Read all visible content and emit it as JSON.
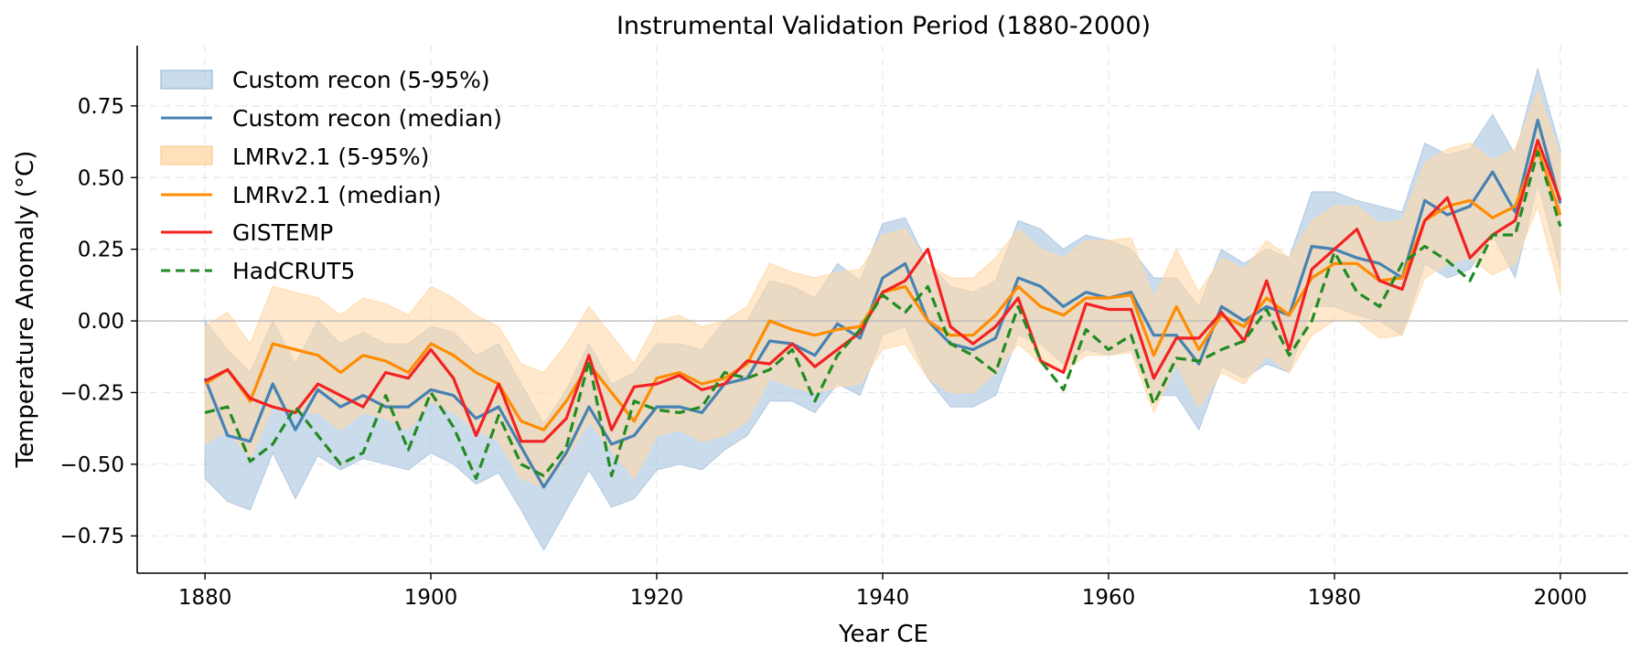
{
  "chart_data": {
    "type": "line",
    "title": "Instrumental Validation Period (1880-2000)",
    "xlabel": "Year CE",
    "ylabel": "Temperature Anomaly (°C)",
    "xlim": [
      1874,
      2006
    ],
    "ylim": [
      -0.88,
      0.96
    ],
    "xticks": [
      1880,
      1900,
      1920,
      1940,
      1960,
      1980,
      2000
    ],
    "xtick_labels": [
      "1880",
      "1900",
      "1920",
      "1940",
      "1960",
      "1980",
      "2000"
    ],
    "yticks": [
      -0.75,
      -0.5,
      -0.25,
      0.0,
      0.25,
      0.5,
      0.75
    ],
    "ytick_labels": [
      "−0.75",
      "−0.50",
      "−0.25",
      "0.00",
      "0.25",
      "0.50",
      "0.75"
    ],
    "grid": true,
    "zero_line": true,
    "legend_position": "top-left",
    "colors": {
      "custom": "#4682b4",
      "custom_band": "#aec7e0",
      "lmr": "#ff8c00",
      "lmr_band": "#ffd8a8",
      "gistemp": "#f22222",
      "hadcrut": "#228b22"
    },
    "x": [
      1880,
      1882,
      1884,
      1886,
      1888,
      1890,
      1892,
      1894,
      1896,
      1898,
      1900,
      1902,
      1904,
      1906,
      1908,
      1910,
      1912,
      1914,
      1916,
      1918,
      1920,
      1922,
      1924,
      1926,
      1928,
      1930,
      1932,
      1934,
      1936,
      1938,
      1940,
      1942,
      1944,
      1946,
      1948,
      1950,
      1952,
      1954,
      1956,
      1958,
      1960,
      1962,
      1964,
      1966,
      1968,
      1970,
      1972,
      1974,
      1976,
      1978,
      1980,
      1982,
      1984,
      1986,
      1988,
      1990,
      1992,
      1994,
      1996,
      1998,
      2000
    ],
    "series": [
      {
        "name": "Custom recon (median)",
        "legend": "Custom recon (median)",
        "style": "solid",
        "color_key": "custom",
        "values": [
          -0.2,
          -0.4,
          -0.42,
          -0.22,
          -0.38,
          -0.24,
          -0.3,
          -0.26,
          -0.3,
          -0.3,
          -0.24,
          -0.26,
          -0.34,
          -0.3,
          -0.44,
          -0.58,
          -0.46,
          -0.3,
          -0.43,
          -0.4,
          -0.3,
          -0.3,
          -0.32,
          -0.22,
          -0.2,
          -0.07,
          -0.08,
          -0.12,
          -0.01,
          -0.06,
          0.15,
          0.2,
          0.0,
          -0.08,
          -0.1,
          -0.06,
          0.15,
          0.12,
          0.05,
          0.1,
          0.08,
          0.1,
          -0.05,
          -0.05,
          -0.15,
          0.05,
          0.0,
          0.05,
          0.02,
          0.26,
          0.25,
          0.22,
          0.2,
          0.15,
          0.42,
          0.37,
          0.4,
          0.52,
          0.38,
          0.7,
          0.41
        ]
      },
      {
        "name": "LMRv2.1 (median)",
        "legend": "LMRv2.1 (median)",
        "style": "solid",
        "color_key": "lmr",
        "values": [
          -0.22,
          -0.17,
          -0.28,
          -0.08,
          -0.1,
          -0.12,
          -0.18,
          -0.12,
          -0.14,
          -0.18,
          -0.08,
          -0.12,
          -0.18,
          -0.22,
          -0.35,
          -0.38,
          -0.28,
          -0.15,
          -0.25,
          -0.35,
          -0.2,
          -0.18,
          -0.22,
          -0.2,
          -0.15,
          0.0,
          -0.03,
          -0.05,
          -0.03,
          -0.02,
          0.1,
          0.12,
          0.0,
          -0.05,
          -0.05,
          0.02,
          0.12,
          0.05,
          0.02,
          0.08,
          0.08,
          0.09,
          -0.12,
          0.05,
          -0.1,
          0.02,
          -0.02,
          0.08,
          0.02,
          0.15,
          0.2,
          0.2,
          0.14,
          0.15,
          0.35,
          0.4,
          0.42,
          0.36,
          0.4,
          0.6,
          0.37
        ]
      },
      {
        "name": "GISTEMP",
        "legend": "GISTEMP",
        "style": "solid",
        "color_key": "gistemp",
        "values": [
          -0.21,
          -0.17,
          -0.27,
          -0.3,
          -0.32,
          -0.22,
          -0.26,
          -0.3,
          -0.18,
          -0.2,
          -0.1,
          -0.2,
          -0.4,
          -0.22,
          -0.42,
          -0.42,
          -0.34,
          -0.12,
          -0.38,
          -0.23,
          -0.22,
          -0.19,
          -0.24,
          -0.22,
          -0.14,
          -0.15,
          -0.08,
          -0.16,
          -0.1,
          -0.04,
          0.1,
          0.14,
          0.25,
          -0.02,
          -0.08,
          -0.02,
          0.08,
          -0.14,
          -0.18,
          0.06,
          0.04,
          0.04,
          -0.2,
          -0.06,
          -0.06,
          0.03,
          -0.07,
          0.14,
          -0.1,
          0.18,
          0.25,
          0.32,
          0.14,
          0.11,
          0.35,
          0.43,
          0.22,
          0.3,
          0.35,
          0.63,
          0.42
        ]
      },
      {
        "name": "HadCRUT5",
        "legend": "HadCRUT5",
        "style": "dashed",
        "color_key": "hadcrut",
        "values": [
          -0.32,
          -0.3,
          -0.49,
          -0.43,
          -0.3,
          -0.4,
          -0.5,
          -0.46,
          -0.26,
          -0.45,
          -0.25,
          -0.37,
          -0.55,
          -0.33,
          -0.5,
          -0.54,
          -0.44,
          -0.14,
          -0.54,
          -0.28,
          -0.31,
          -0.32,
          -0.3,
          -0.18,
          -0.2,
          -0.17,
          -0.1,
          -0.28,
          -0.12,
          -0.03,
          0.09,
          0.03,
          0.12,
          -0.08,
          -0.12,
          -0.18,
          0.05,
          -0.14,
          -0.24,
          -0.03,
          -0.1,
          -0.05,
          -0.29,
          -0.13,
          -0.14,
          -0.1,
          -0.07,
          0.04,
          -0.12,
          0.0,
          0.24,
          0.1,
          0.05,
          0.2,
          0.26,
          0.21,
          0.14,
          0.3,
          0.3,
          0.59,
          0.33
        ]
      }
    ],
    "bands": [
      {
        "name": "Custom recon (5-95%)",
        "legend": "Custom recon (5-95%)",
        "color_key": "custom_band",
        "opacity": 0.65,
        "lower": [
          -0.55,
          -0.63,
          -0.66,
          -0.46,
          -0.62,
          -0.47,
          -0.52,
          -0.48,
          -0.5,
          -0.52,
          -0.46,
          -0.5,
          -0.57,
          -0.53,
          -0.66,
          -0.8,
          -0.66,
          -0.52,
          -0.65,
          -0.62,
          -0.52,
          -0.5,
          -0.52,
          -0.45,
          -0.4,
          -0.28,
          -0.28,
          -0.32,
          -0.22,
          -0.26,
          -0.05,
          -0.02,
          -0.2,
          -0.3,
          -0.3,
          -0.26,
          -0.05,
          -0.08,
          -0.15,
          -0.1,
          -0.12,
          -0.1,
          -0.26,
          -0.26,
          -0.38,
          -0.16,
          -0.2,
          -0.15,
          -0.18,
          0.05,
          0.05,
          0.02,
          0.0,
          -0.05,
          0.2,
          0.15,
          0.18,
          0.3,
          0.15,
          0.48,
          0.18
        ],
        "upper": [
          0.0,
          -0.1,
          -0.18,
          0.0,
          -0.15,
          0.0,
          -0.08,
          -0.04,
          -0.08,
          -0.08,
          -0.02,
          -0.04,
          -0.12,
          -0.08,
          -0.22,
          -0.36,
          -0.24,
          -0.08,
          -0.22,
          -0.18,
          -0.08,
          -0.08,
          -0.1,
          0.0,
          0.0,
          0.14,
          0.12,
          0.08,
          0.2,
          0.14,
          0.34,
          0.36,
          0.2,
          0.12,
          0.1,
          0.14,
          0.35,
          0.32,
          0.25,
          0.3,
          0.28,
          0.25,
          0.15,
          0.15,
          0.05,
          0.25,
          0.2,
          0.25,
          0.22,
          0.45,
          0.45,
          0.42,
          0.4,
          0.38,
          0.62,
          0.58,
          0.6,
          0.72,
          0.58,
          0.88,
          0.6
        ]
      },
      {
        "name": "LMRv2.1 (5-95%)",
        "legend": "LMRv2.1 (5-95%)",
        "color_key": "lmr_band",
        "opacity": 0.6,
        "lower": [
          -0.43,
          -0.38,
          -0.48,
          -0.3,
          -0.32,
          -0.32,
          -0.38,
          -0.32,
          -0.34,
          -0.38,
          -0.28,
          -0.32,
          -0.38,
          -0.42,
          -0.55,
          -0.58,
          -0.48,
          -0.35,
          -0.45,
          -0.55,
          -0.4,
          -0.38,
          -0.42,
          -0.4,
          -0.35,
          -0.2,
          -0.23,
          -0.25,
          -0.23,
          -0.22,
          -0.1,
          -0.08,
          -0.2,
          -0.25,
          -0.25,
          -0.18,
          -0.08,
          -0.15,
          -0.18,
          -0.12,
          -0.12,
          -0.11,
          -0.32,
          -0.15,
          -0.3,
          -0.18,
          -0.22,
          -0.12,
          -0.18,
          -0.05,
          0.0,
          0.0,
          -0.06,
          -0.05,
          0.15,
          0.2,
          0.22,
          0.16,
          0.2,
          0.4,
          0.1
        ],
        "upper": [
          -0.02,
          0.03,
          -0.08,
          0.12,
          0.1,
          0.08,
          0.02,
          0.08,
          0.06,
          0.02,
          0.12,
          0.08,
          0.02,
          -0.02,
          -0.15,
          -0.18,
          -0.08,
          0.05,
          -0.05,
          -0.15,
          0.0,
          0.02,
          -0.02,
          0.0,
          0.05,
          0.2,
          0.17,
          0.15,
          0.17,
          0.18,
          0.3,
          0.32,
          0.2,
          0.15,
          0.15,
          0.22,
          0.32,
          0.25,
          0.22,
          0.28,
          0.28,
          0.29,
          0.08,
          0.25,
          0.1,
          0.22,
          0.18,
          0.28,
          0.22,
          0.35,
          0.4,
          0.4,
          0.34,
          0.35,
          0.55,
          0.6,
          0.62,
          0.56,
          0.6,
          0.8,
          0.58
        ]
      }
    ]
  }
}
